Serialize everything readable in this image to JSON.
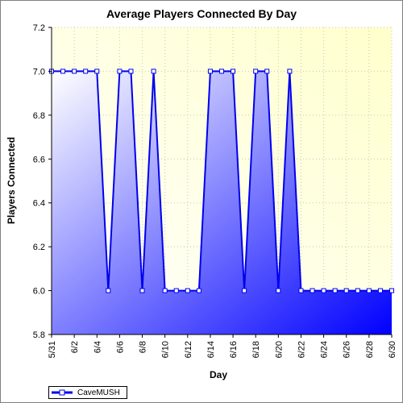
{
  "chart_data": {
    "type": "area",
    "title": "Average Players Connected By Day",
    "xlabel": "Day",
    "ylabel": "Players Connected",
    "ylim": [
      5.8,
      7.2
    ],
    "yticks": [
      "5.8",
      "6.0",
      "6.2",
      "6.4",
      "6.6",
      "6.8",
      "7.0",
      "7.2"
    ],
    "x": [
      "5/31",
      "6/1",
      "6/2",
      "6/3",
      "6/4",
      "6/5",
      "6/6",
      "6/7",
      "6/8",
      "6/9",
      "6/10",
      "6/11",
      "6/12",
      "6/13",
      "6/14",
      "6/15",
      "6/16",
      "6/17",
      "6/18",
      "6/19",
      "6/20",
      "6/21",
      "6/22",
      "6/23",
      "6/24",
      "6/25",
      "6/26",
      "6/27",
      "6/28",
      "6/29",
      "6/30"
    ],
    "x_tick_labels": [
      "5/31",
      "6/2",
      "6/4",
      "6/6",
      "6/8",
      "6/10",
      "6/12",
      "6/14",
      "6/16",
      "6/18",
      "6/20",
      "6/22",
      "6/24",
      "6/26",
      "6/28",
      "6/30"
    ],
    "series": [
      {
        "name": "CaveMUSH",
        "values": [
          7.0,
          7.0,
          7.0,
          7.0,
          7.0,
          6.0,
          7.0,
          7.0,
          6.0,
          7.0,
          6.0,
          6.0,
          6.0,
          6.0,
          7.0,
          7.0,
          7.0,
          6.0,
          7.0,
          7.0,
          6.0,
          7.0,
          6.0,
          6.0,
          6.0,
          6.0,
          6.0,
          6.0,
          6.0,
          6.0,
          6.0
        ]
      }
    ],
    "grid": true,
    "legend_position": "bottom-left",
    "colors": {
      "line": "#0000ee",
      "fill_light": "#ffffff",
      "fill_dark": "#0000ff",
      "plot_background": "#ffffdd",
      "grid": "#c8c8b4"
    }
  }
}
